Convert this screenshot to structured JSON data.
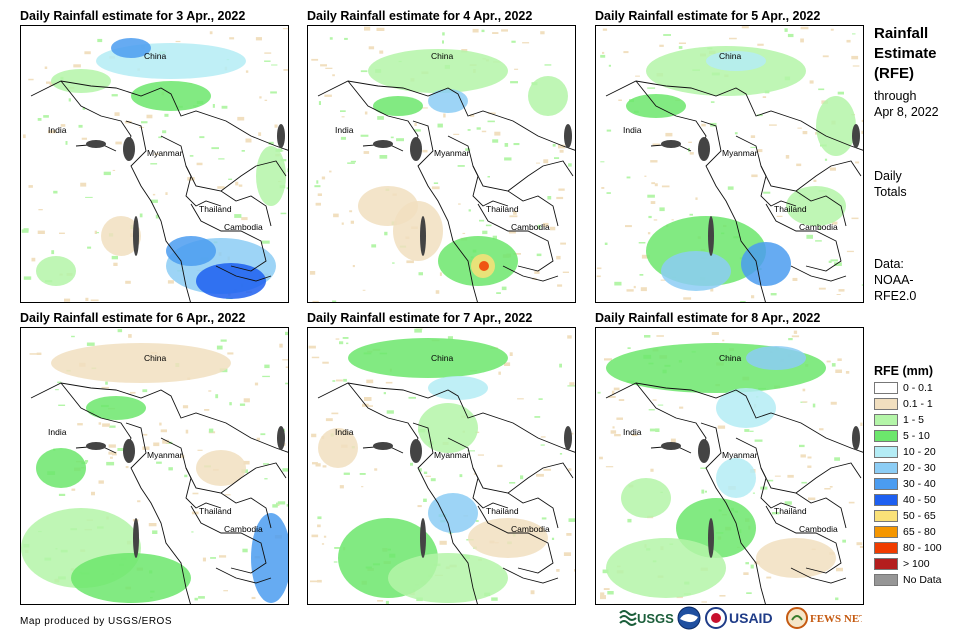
{
  "panels": [
    {
      "title": "Daily Rainfall estimate for 3 Apr., 2022"
    },
    {
      "title": "Daily Rainfall estimate for 4 Apr., 2022"
    },
    {
      "title": "Daily Rainfall estimate for 5 Apr., 2022"
    },
    {
      "title": "Daily Rainfall estimate for 6 Apr., 2022"
    },
    {
      "title": "Daily Rainfall estimate for 7 Apr., 2022"
    },
    {
      "title": "Daily Rainfall estimate for 8 Apr., 2022"
    }
  ],
  "places": {
    "china": "China",
    "india": "India",
    "myanmar": "Myanmar",
    "thailand": "Thailand",
    "cambodia": "Cambodia"
  },
  "side": {
    "title_line1": "Rainfall",
    "title_line2": "Estimate",
    "title_line3": "(RFE)",
    "through_line1": "through",
    "through_line2": "Apr 8, 2022",
    "daily_line1": "Daily",
    "daily_line2": "Totals",
    "data_line1": "Data:",
    "data_line2": "NOAA-",
    "data_line3": "RFE2.0"
  },
  "legend": {
    "title": "RFE (mm)",
    "items": [
      {
        "label": "0 - 0.1",
        "color": "#ffffff"
      },
      {
        "label": "0.1 - 1",
        "color": "#f1dfbf"
      },
      {
        "label": "1 - 5",
        "color": "#b4f5a8"
      },
      {
        "label": "5 - 10",
        "color": "#6ce66c"
      },
      {
        "label": "10 - 20",
        "color": "#b4ecf5"
      },
      {
        "label": "20 - 30",
        "color": "#8ccdf5"
      },
      {
        "label": "30 - 40",
        "color": "#4b9cf0"
      },
      {
        "label": "40 - 50",
        "color": "#1d5ff0"
      },
      {
        "label": "50 - 65",
        "color": "#fae178"
      },
      {
        "label": "65 - 80",
        "color": "#f59600"
      },
      {
        "label": "80 - 100",
        "color": "#f03c00"
      },
      {
        "label": "> 100",
        "color": "#b41e1e"
      },
      {
        "label": "No Data",
        "color": "#969696"
      }
    ]
  },
  "footer": {
    "credit": "Map produced by USGS/EROS"
  },
  "logos": {
    "usgs": "USGS",
    "usaid": "USAID",
    "fewsnet": "FEWS NET"
  }
}
